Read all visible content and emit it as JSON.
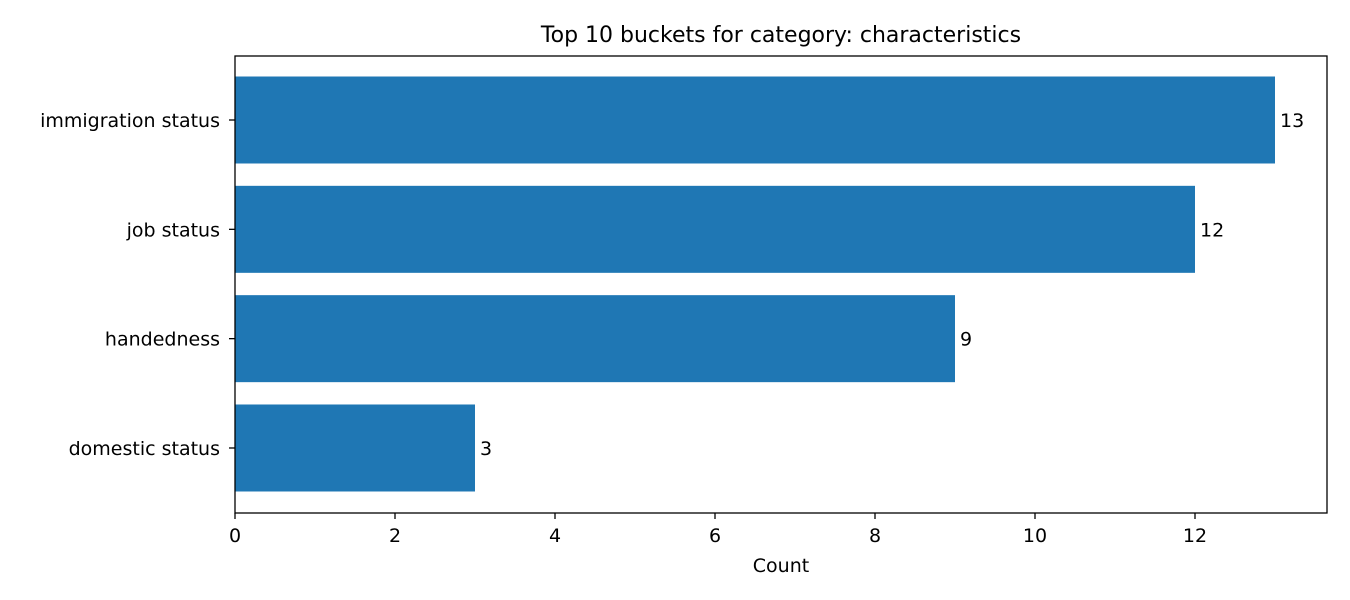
{
  "chart_data": {
    "type": "bar",
    "orientation": "horizontal",
    "title": "Top 10 buckets for category: characteristics",
    "xlabel": "Count",
    "ylabel": "",
    "categories": [
      "immigration status",
      "job status",
      "handedness",
      "domestic status"
    ],
    "values": [
      13,
      12,
      9,
      3
    ],
    "data_labels": [
      "13",
      "12",
      "9",
      "3"
    ],
    "xlim": [
      0,
      13.65
    ],
    "x_ticks": [
      0,
      2,
      4,
      6,
      8,
      10,
      12
    ],
    "x_tick_labels": [
      "0",
      "2",
      "4",
      "6",
      "8",
      "10",
      "12"
    ],
    "grid": false,
    "bar_color": "#1f77b4"
  }
}
